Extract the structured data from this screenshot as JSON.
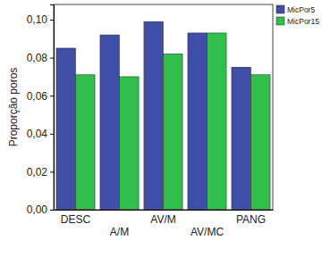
{
  "chart_data": {
    "type": "bar",
    "y_label": "Proporção poros",
    "categories": [
      "DESC",
      "A/M",
      "AV/M",
      "AV/MC",
      "PANG"
    ],
    "series": [
      {
        "name": "MicPor5",
        "color": "#3f4fa8",
        "values": [
          0.085,
          0.092,
          0.099,
          0.093,
          0.075
        ]
      },
      {
        "name": "MicPor15",
        "color": "#2fbf4a",
        "values": [
          0.071,
          0.07,
          0.082,
          0.093,
          0.071
        ]
      }
    ],
    "ylim": [
      0,
      0.108
    ],
    "yticks": [
      {
        "value": 0,
        "label": "0,00"
      },
      {
        "value": 0.02,
        "label": "0,02"
      },
      {
        "value": 0.04,
        "label": "0,04"
      },
      {
        "value": 0.06,
        "label": "0,06"
      },
      {
        "value": 0.08,
        "label": "0,08"
      },
      {
        "value": 0.1,
        "label": "0,10"
      }
    ],
    "grid": false,
    "legend": "right"
  }
}
